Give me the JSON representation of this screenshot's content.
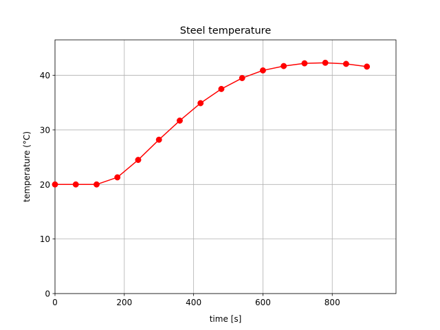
{
  "chart_data": {
    "type": "line",
    "title": "Steel temperature",
    "xlabel": "time [s]",
    "ylabel": "temperature (°C)",
    "xlim": [
      0,
      984
    ],
    "ylim": [
      0,
      46.5
    ],
    "xticks": [
      0,
      200,
      400,
      600,
      800
    ],
    "yticks": [
      0,
      10,
      20,
      30,
      40
    ],
    "grid": true,
    "series": [
      {
        "color": "#ff0000",
        "marker": "circle",
        "x": [
          0,
          60,
          120,
          180,
          240,
          300,
          360,
          420,
          480,
          540,
          600,
          660,
          720,
          780,
          840,
          900
        ],
        "y": [
          20.0,
          20.0,
          20.0,
          21.3,
          24.5,
          28.2,
          31.7,
          34.9,
          37.5,
          39.5,
          40.9,
          41.7,
          42.2,
          42.3,
          42.1,
          41.6
        ]
      }
    ]
  }
}
